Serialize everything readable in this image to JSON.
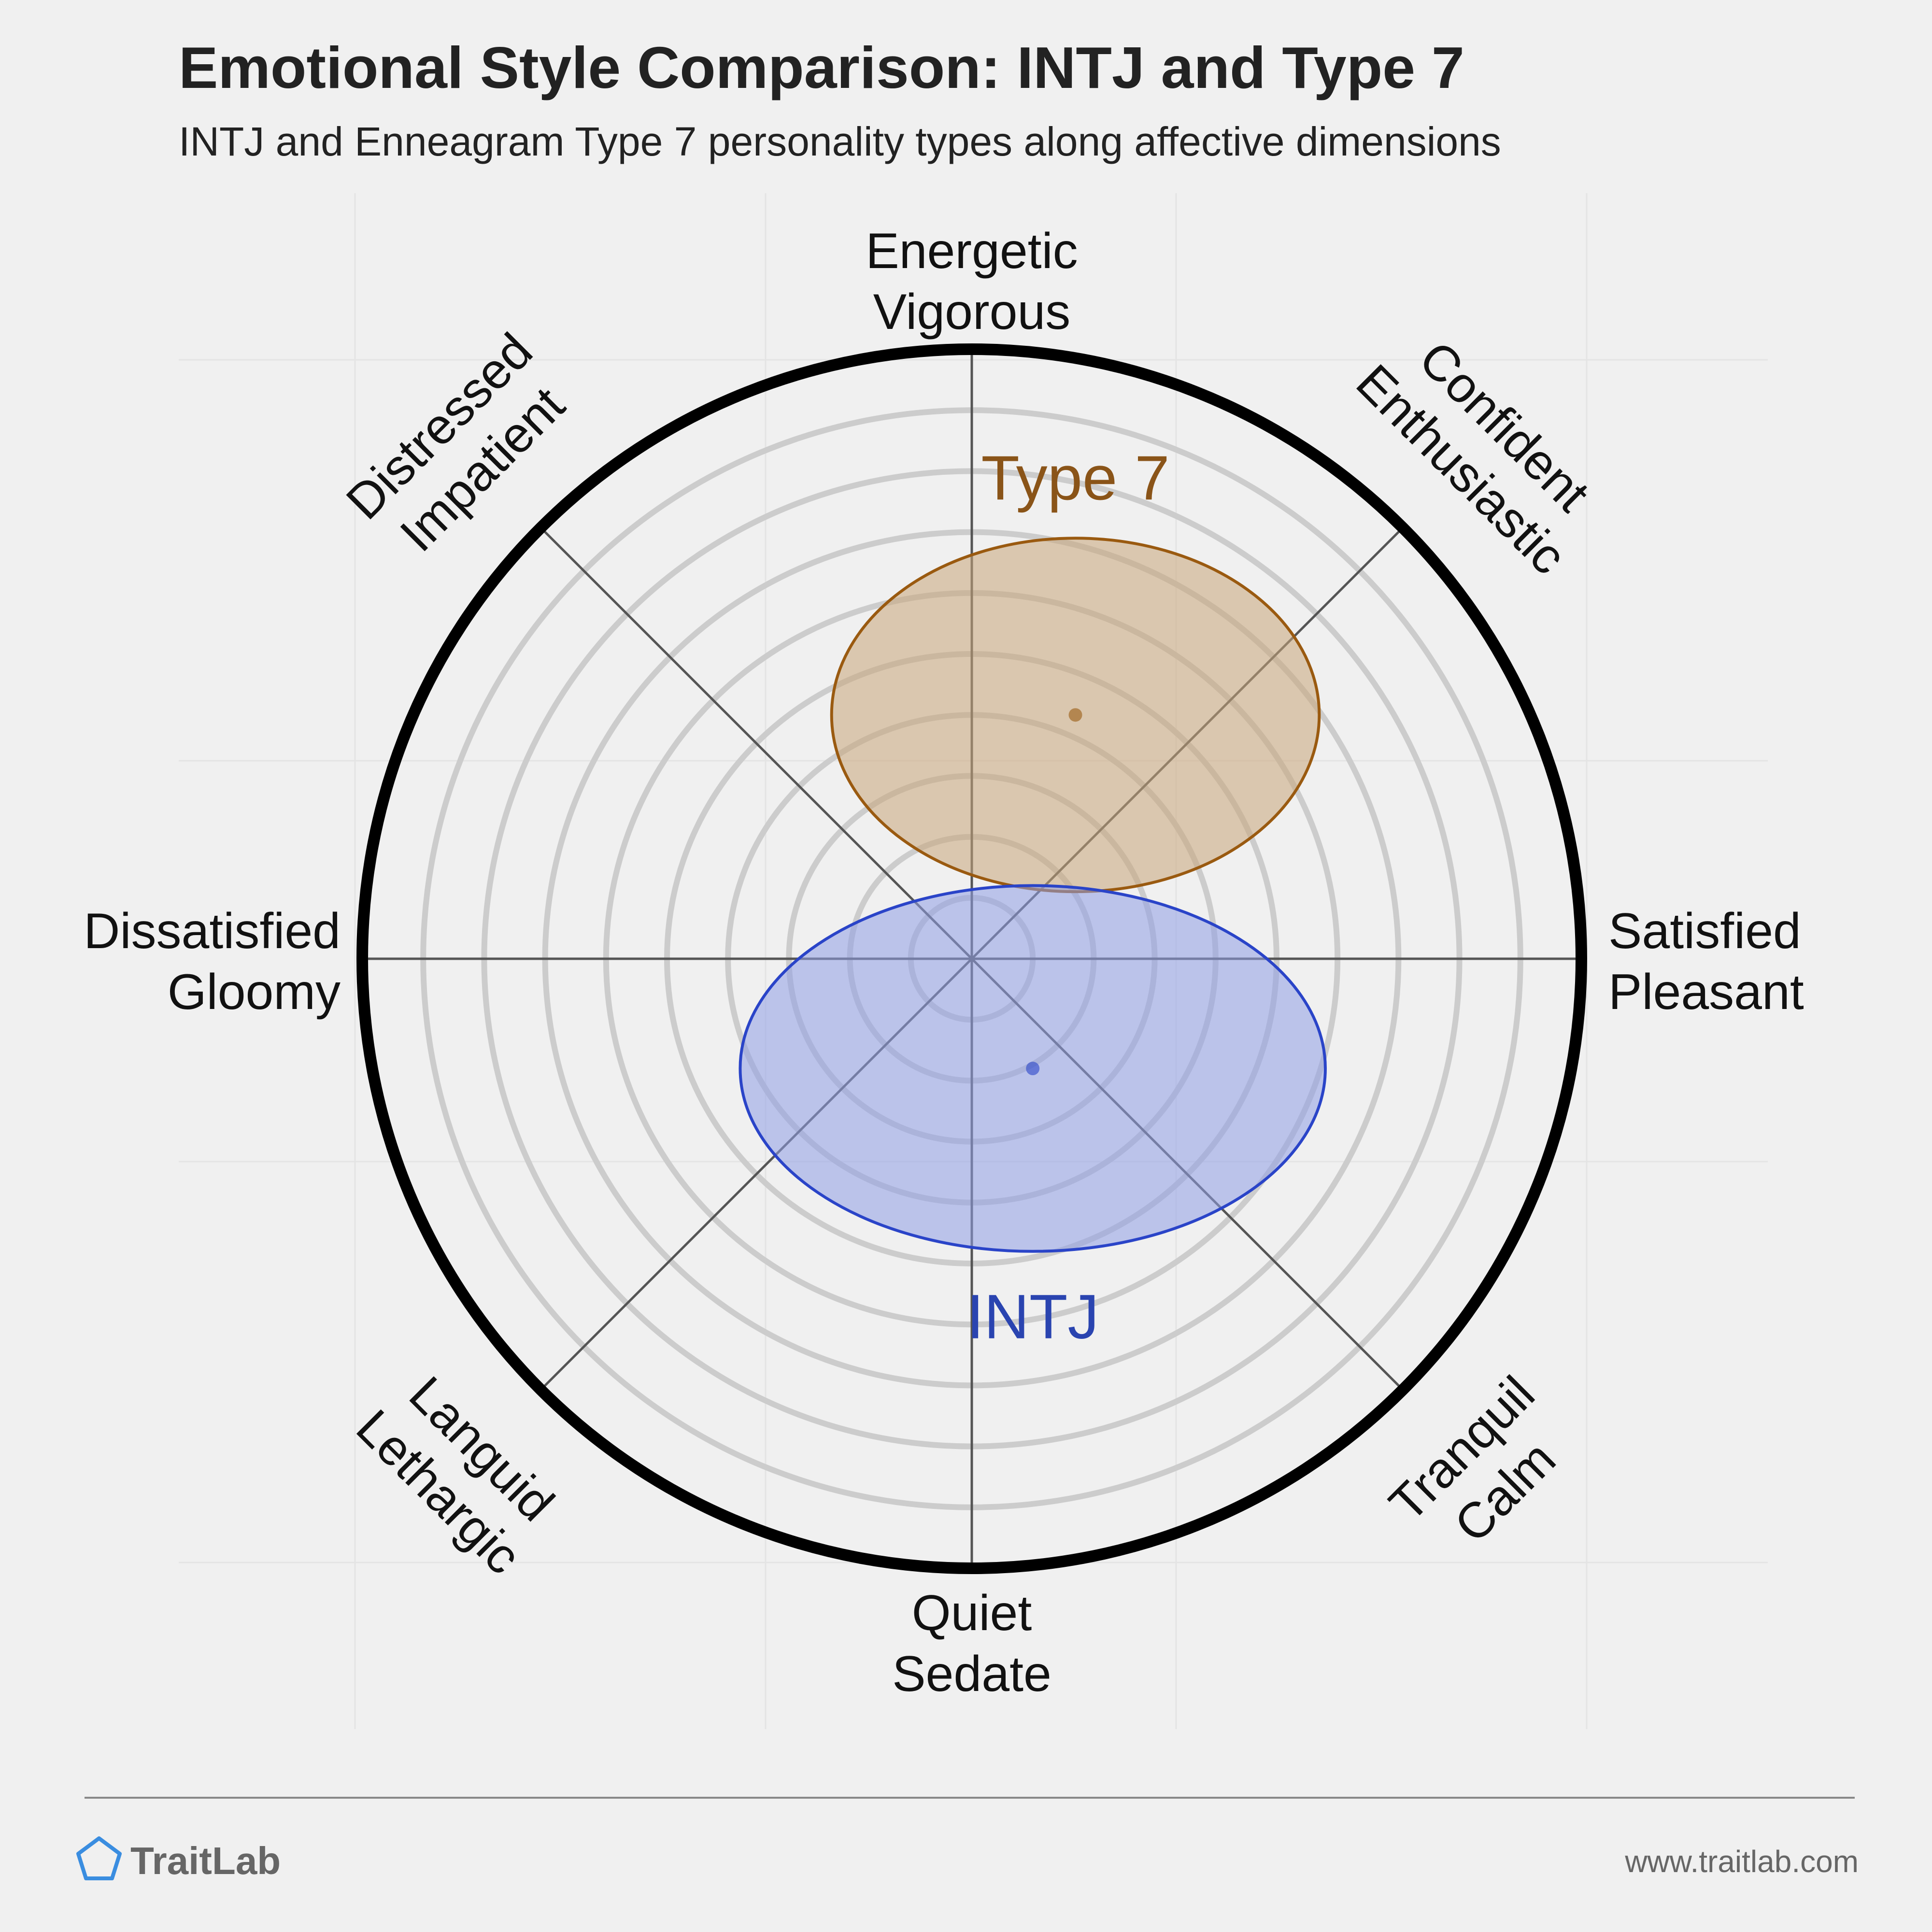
{
  "title": "Emotional Style Comparison: INTJ and Type 7",
  "subtitle": "INTJ and Enneagram Type 7 personality types along affective dimensions",
  "brand": {
    "name": "TraitLab",
    "url": "www.traitlab.com",
    "icon": "pentagon-icon",
    "color": "#3a8de0"
  },
  "chart_data": {
    "type": "scatter",
    "plot": "circumplex",
    "axes": [
      {
        "id": "top",
        "angle_deg": 90,
        "lines": [
          "Energetic",
          "Vigorous"
        ]
      },
      {
        "id": "top-right",
        "angle_deg": 45,
        "lines": [
          "Confident",
          "Enthusiastic"
        ]
      },
      {
        "id": "right",
        "angle_deg": 0,
        "lines": [
          "Satisfied",
          "Pleasant"
        ]
      },
      {
        "id": "bottom-right",
        "angle_deg": -45,
        "lines": [
          "Tranquil",
          "Calm"
        ]
      },
      {
        "id": "bottom",
        "angle_deg": -90,
        "lines": [
          "Quiet",
          "Sedate"
        ]
      },
      {
        "id": "bottom-left",
        "angle_deg": -135,
        "lines": [
          "Languid",
          "Lethargic"
        ]
      },
      {
        "id": "left",
        "angle_deg": 180,
        "lines": [
          "Dissatisfied",
          "Gloomy"
        ]
      },
      {
        "id": "top-left",
        "angle_deg": 135,
        "lines": [
          "Distressed",
          "Impatient"
        ]
      }
    ],
    "range": [
      -1,
      1
    ],
    "rings": [
      0.1,
      0.2,
      0.3,
      0.4,
      0.5,
      0.6,
      0.7,
      0.8,
      0.9
    ],
    "series": [
      {
        "name": "Type 7",
        "x": 0.17,
        "y": 0.4,
        "rx": 0.4,
        "ry": 0.29,
        "fill": "#c8a57a",
        "stroke": "#9a5a10",
        "label_color": "#8a5418"
      },
      {
        "name": "INTJ",
        "x": 0.1,
        "y": -0.18,
        "rx": 0.48,
        "ry": 0.3,
        "fill": "#8f9fe6",
        "stroke": "#2a44c8",
        "label_color": "#2a44b0"
      }
    ]
  }
}
